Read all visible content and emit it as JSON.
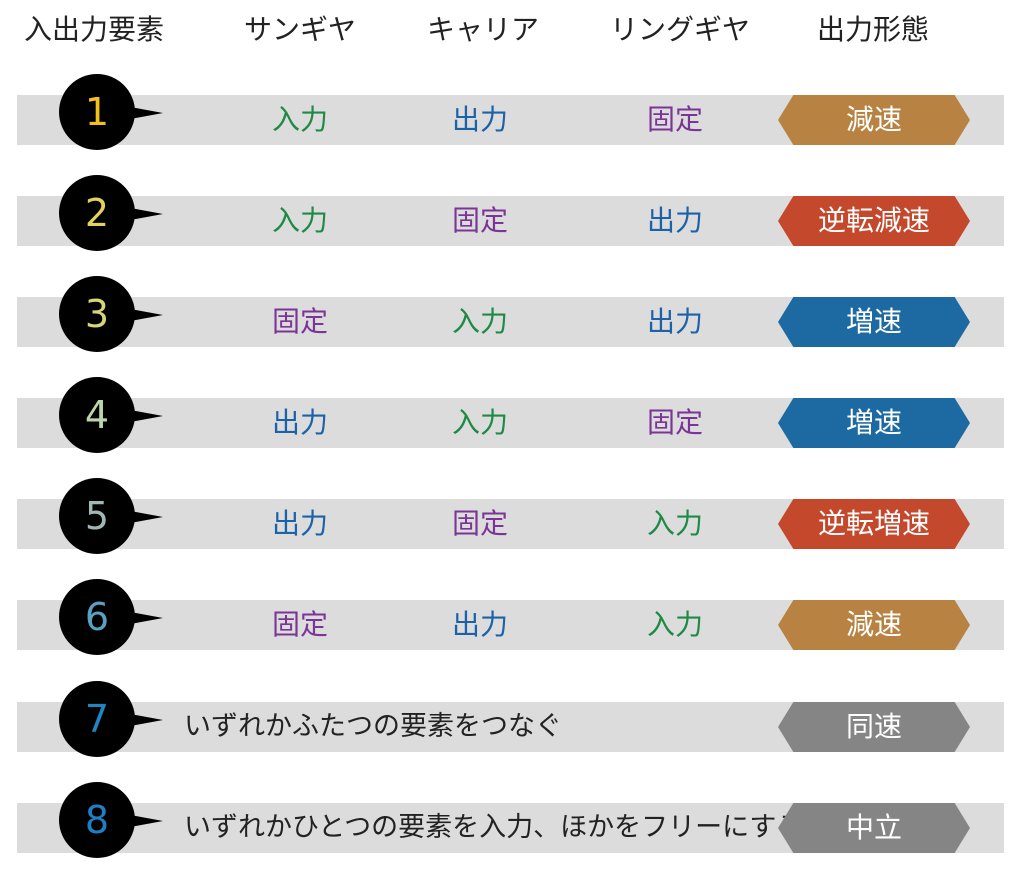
{
  "headers": {
    "element": "入出力要素",
    "sun": "サンギヤ",
    "carrier": "キャリア",
    "ring": "リングギヤ",
    "mode": "出力形態"
  },
  "colors": {
    "入力": "#1f8a45",
    "出力": "#1c62a8",
    "固定": "#7b3596",
    "減速": "#b88342",
    "逆転減速": "#c4482b",
    "増速": "#1d6aa2",
    "逆転増速": "#c4482b",
    "同速": "#858585",
    "中立": "#858585"
  },
  "rows": [
    {
      "num": "1",
      "num_color": "#f2c21b",
      "sun": "入力",
      "carrier": "出力",
      "ring": "固定",
      "mode": "減速"
    },
    {
      "num": "2",
      "num_color": "#e3d15d",
      "sun": "入力",
      "carrier": "固定",
      "ring": "出力",
      "mode": "逆転減速"
    },
    {
      "num": "3",
      "num_color": "#d6d57c",
      "sun": "固定",
      "carrier": "入力",
      "ring": "出力",
      "mode": "増速"
    },
    {
      "num": "4",
      "num_color": "#bcd6a8",
      "sun": "出力",
      "carrier": "入力",
      "ring": "固定",
      "mode": "増速"
    },
    {
      "num": "5",
      "num_color": "#9fb8b5",
      "sun": "出力",
      "carrier": "固定",
      "ring": "入力",
      "mode": "逆転増速"
    },
    {
      "num": "6",
      "num_color": "#5aa0c2",
      "sun": "固定",
      "carrier": "出力",
      "ring": "入力",
      "mode": "減速"
    },
    {
      "num": "7",
      "num_color": "#1f86c4",
      "description": "いずれかふたつの要素をつなぐ",
      "mode": "同速"
    },
    {
      "num": "8",
      "num_color": "#1e7fc6",
      "description": "いずれかひとつの要素を入力、ほかをフリーにする",
      "mode": "中立"
    }
  ]
}
